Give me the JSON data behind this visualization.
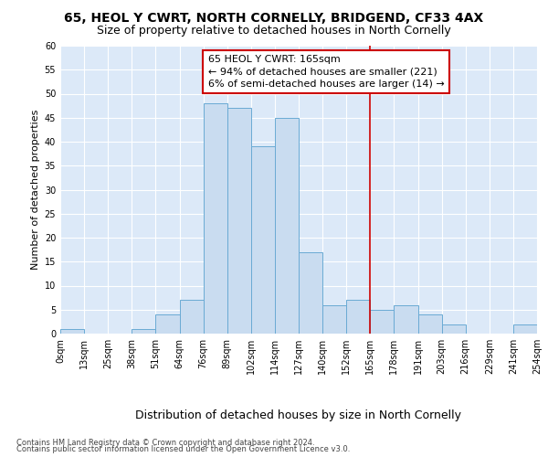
{
  "title": "65, HEOL Y CWRT, NORTH CORNELLY, BRIDGEND, CF33 4AX",
  "subtitle": "Size of property relative to detached houses in North Cornelly",
  "xlabel": "Distribution of detached houses by size in North Cornelly",
  "ylabel": "Number of detached properties",
  "bin_labels": [
    "0sqm",
    "13sqm",
    "25sqm",
    "38sqm",
    "51sqm",
    "64sqm",
    "76sqm",
    "89sqm",
    "102sqm",
    "114sqm",
    "127sqm",
    "140sqm",
    "152sqm",
    "165sqm",
    "178sqm",
    "191sqm",
    "203sqm",
    "216sqm",
    "229sqm",
    "241sqm",
    "254sqm"
  ],
  "bar_values": [
    1,
    0,
    0,
    1,
    4,
    7,
    48,
    47,
    39,
    45,
    17,
    6,
    7,
    5,
    6,
    4,
    2,
    0,
    0,
    2
  ],
  "bar_color": "#c9dcf0",
  "bar_edge_color": "#6aaad4",
  "vline_index": 13,
  "vline_color": "#cc0000",
  "annotation_text": "65 HEOL Y CWRT: 165sqm\n← 94% of detached houses are smaller (221)\n6% of semi-detached houses are larger (14) →",
  "annotation_box_color": "#ffffff",
  "annotation_box_edge": "#cc0000",
  "ylim": [
    0,
    60
  ],
  "yticks": [
    0,
    5,
    10,
    15,
    20,
    25,
    30,
    35,
    40,
    45,
    50,
    55,
    60
  ],
  "footer1": "Contains HM Land Registry data © Crown copyright and database right 2024.",
  "footer2": "Contains public sector information licensed under the Open Government Licence v3.0.",
  "background_color": "#dce9f8",
  "title_fontsize": 10,
  "subtitle_fontsize": 9,
  "xlabel_fontsize": 9,
  "ylabel_fontsize": 8,
  "tick_fontsize": 7,
  "annotation_fontsize": 8,
  "footer_fontsize": 6
}
